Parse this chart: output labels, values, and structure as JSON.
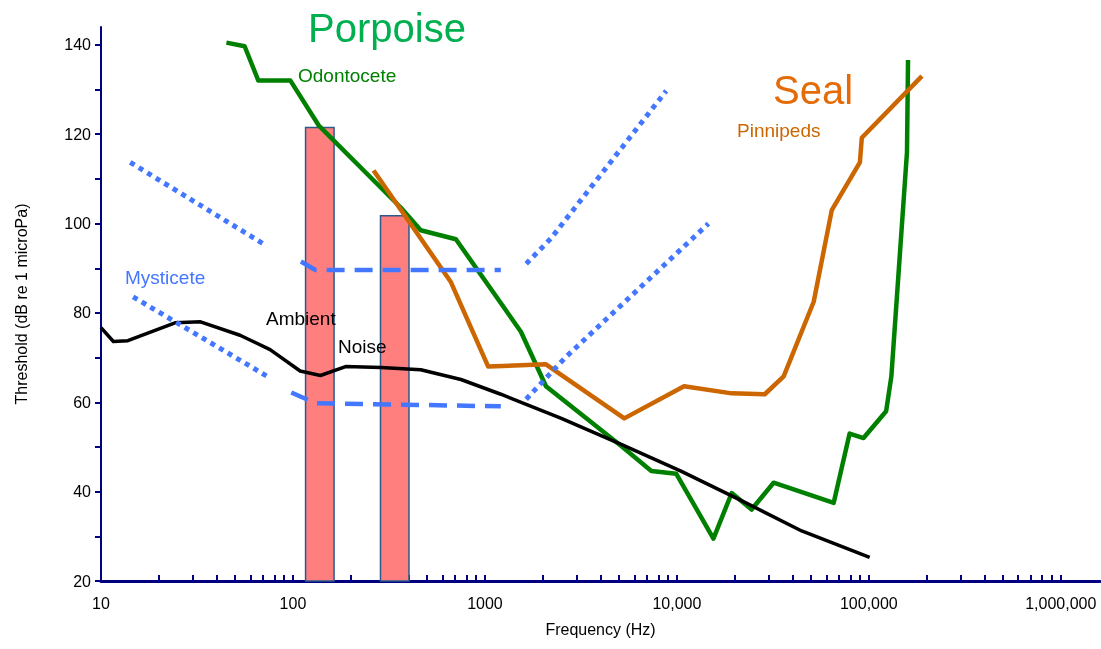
{
  "chart_data": {
    "type": "line",
    "xlabel": "Frequency (Hz)",
    "ylabel": "Threshold (dB re 1 microPa)",
    "log": "x",
    "xlim": [
      10,
      1600000
    ],
    "ylim": [
      20,
      144
    ],
    "xticks": [
      10,
      {
        "value": 20,
        "label": null
      },
      {
        "value": 30,
        "label": null
      },
      {
        "value": 40,
        "label": null
      },
      {
        "value": 50,
        "label": null
      },
      {
        "value": 60,
        "label": null
      },
      {
        "value": 70,
        "label": null
      },
      {
        "value": 80,
        "label": null
      },
      {
        "value": 90,
        "label": null
      },
      100,
      {
        "value": 200,
        "label": null
      },
      {
        "value": 300,
        "label": null
      },
      {
        "value": 400,
        "label": null
      },
      {
        "value": 500,
        "label": null
      },
      {
        "value": 600,
        "label": null
      },
      {
        "value": 700,
        "label": null
      },
      {
        "value": 800,
        "label": null
      },
      {
        "value": 900,
        "label": null
      },
      1000,
      {
        "value": 2000,
        "label": null
      },
      {
        "value": 3000,
        "label": null
      },
      {
        "value": 4000,
        "label": null
      },
      {
        "value": 5000,
        "label": null
      },
      {
        "value": 6000,
        "label": null
      },
      {
        "value": 7000,
        "label": null
      },
      {
        "value": 8000,
        "label": null
      },
      {
        "value": 9000,
        "label": null
      },
      {
        "value": 10000,
        "label": "10,000"
      },
      {
        "value": 20000,
        "label": null
      },
      {
        "value": 30000,
        "label": null
      },
      {
        "value": 40000,
        "label": null
      },
      {
        "value": 50000,
        "label": null
      },
      {
        "value": 60000,
        "label": null
      },
      {
        "value": 70000,
        "label": null
      },
      {
        "value": 80000,
        "label": null
      },
      {
        "value": 90000,
        "label": null
      },
      {
        "value": 100000,
        "label": "100,000"
      },
      {
        "value": 200000,
        "label": null
      },
      {
        "value": 300000,
        "label": null
      },
      {
        "value": 400000,
        "label": null
      },
      {
        "value": 500000,
        "label": null
      },
      {
        "value": 600000,
        "label": null
      },
      {
        "value": 700000,
        "label": null
      },
      {
        "value": 800000,
        "label": null
      },
      {
        "value": 900000,
        "label": null
      },
      {
        "value": 1000000,
        "label": "1,000,000"
      }
    ],
    "yticks": [
      20,
      {
        "value": 30,
        "label": null
      },
      40,
      {
        "value": 50,
        "label": null
      },
      60,
      {
        "value": 70,
        "label": null
      },
      80,
      {
        "value": 90,
        "label": null
      },
      100,
      {
        "value": 110,
        "label": null
      },
      120,
      {
        "value": 130,
        "label": null
      },
      140
    ],
    "series": [
      {
        "type": "bar",
        "color": "#ff7f7f",
        "x": [
          138,
          339
        ],
        "values": [
          121.7,
          101.9
        ]
      },
      {
        "color": "#008000",
        "line_style": "solid",
        "x": [
          45,
          56,
          66,
          97,
          136,
          364,
          463,
          706,
          1540,
          2080,
          5130,
          7360,
          9930,
          15500,
          19300,
          24500,
          31900,
          65600,
          79400,
          93800,
          123000,
          131000,
          158000,
          160000
        ],
        "values": [
          140.5,
          139.7,
          132,
          132,
          122,
          103.6,
          98.5,
          96.5,
          75.8,
          63.6,
          50.2,
          44.6,
          44,
          29.5,
          39.7,
          36,
          42,
          37.5,
          53,
          52,
          58,
          65.8,
          116,
          136.6
        ]
      },
      {
        "color": "#cc6600",
        "line_style": "solid",
        "x": [
          263,
          663,
          1040,
          2080,
          5320,
          10900,
          19300,
          28700,
          36000,
          51600,
          64100,
          89800,
          91900,
          189000
        ],
        "values": [
          111.9,
          87,
          68,
          68.5,
          56.4,
          63.6,
          62,
          61.8,
          65.8,
          82.5,
          103,
          113.7,
          119.2,
          133
        ]
      },
      {
        "color": "#000000",
        "line_style": "solid",
        "x": [
          10,
          11.6,
          13.8,
          24.3,
          33,
          53,
          76,
          109,
          139,
          188,
          287,
          463,
          750,
          1210,
          2500,
          5130,
          10500,
          21700,
          44700,
          101000
        ],
        "values": [
          76.7,
          73.6,
          73.8,
          77.8,
          78,
          75,
          71.8,
          67,
          66,
          68,
          67.8,
          67.3,
          65.1,
          61.8,
          56.4,
          50.6,
          44.6,
          38,
          31.2,
          25.3
        ]
      },
      {
        "color": "#4477ff",
        "line_style": "dotted",
        "x": [
          14.2,
          71.8
        ],
        "values": [
          113.7,
          95.2
        ]
      },
      {
        "color": "#4477ff",
        "line_style": "dashed",
        "x": [
          110,
          131,
          1210
        ],
        "values": [
          91.5,
          89.6,
          89.6
        ]
      },
      {
        "color": "#4477ff",
        "line_style": "dotted",
        "x": [
          1640,
          2210,
          8800
        ],
        "values": [
          91,
          96.7,
          129.7
        ]
      },
      {
        "color": "#4477ff",
        "line_style": "dotted",
        "x": [
          14.7,
          73.5
        ],
        "values": [
          83.6,
          65.8
        ]
      },
      {
        "color": "#4477ff",
        "line_style": "dashed",
        "x": [
          98,
          131,
          1210
        ],
        "values": [
          62.2,
          59.8,
          59.1
        ]
      },
      {
        "color": "#4477ff",
        "line_style": "dotted",
        "x": [
          1640,
          2620,
          14600
        ],
        "values": [
          60.7,
          70,
          100
        ]
      }
    ],
    "annotations": [
      "Porpoise",
      "Seal",
      "Odontocete",
      "Pinnipeds",
      "Mysticete",
      "Ambient",
      "Noise"
    ]
  }
}
